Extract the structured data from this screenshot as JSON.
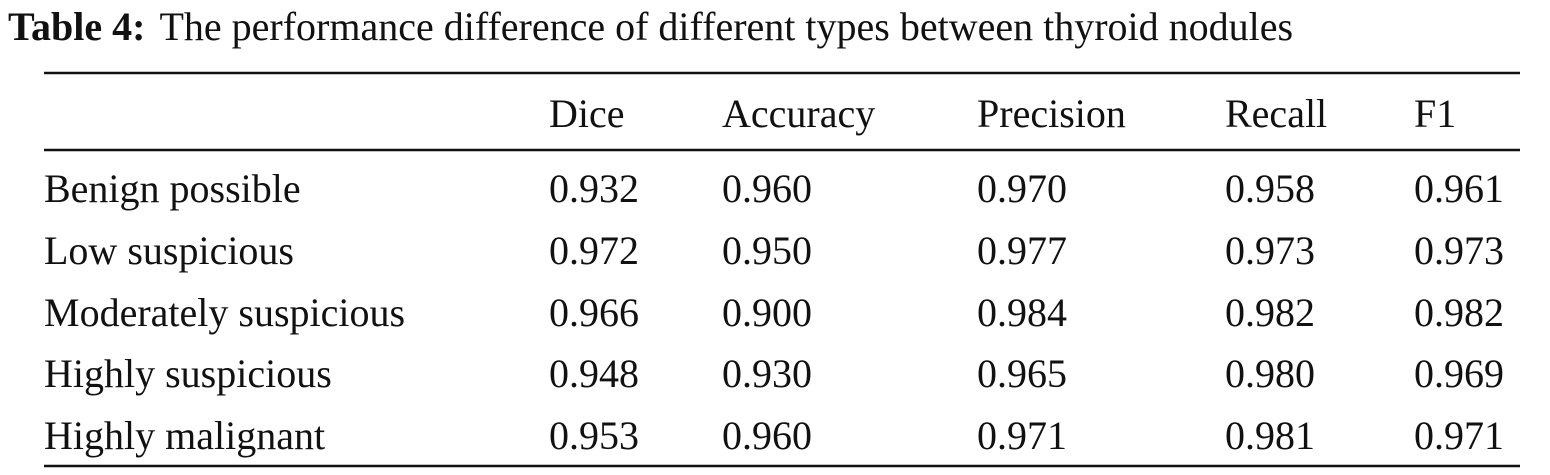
{
  "caption": {
    "label": "Table 4:",
    "text": "The performance difference of different types between thyroid nodules"
  },
  "table": {
    "columns": [
      "Dice",
      "Accuracy",
      "Precision",
      "Recall",
      "F1"
    ],
    "rows": [
      {
        "label": "Benign possible",
        "values": [
          "0.932",
          "0.960",
          "0.970",
          "0.958",
          "0.961"
        ]
      },
      {
        "label": "Low suspicious",
        "values": [
          "0.972",
          "0.950",
          "0.977",
          "0.973",
          "0.973"
        ]
      },
      {
        "label": "Moderately suspicious",
        "values": [
          "0.966",
          "0.900",
          "0.984",
          "0.982",
          "0.982"
        ]
      },
      {
        "label": "Highly suspicious",
        "values": [
          "0.948",
          "0.930",
          "0.965",
          "0.980",
          "0.969"
        ]
      },
      {
        "label": "Highly malignant",
        "values": [
          "0.953",
          "0.960",
          "0.971",
          "0.981",
          "0.971"
        ]
      }
    ]
  }
}
